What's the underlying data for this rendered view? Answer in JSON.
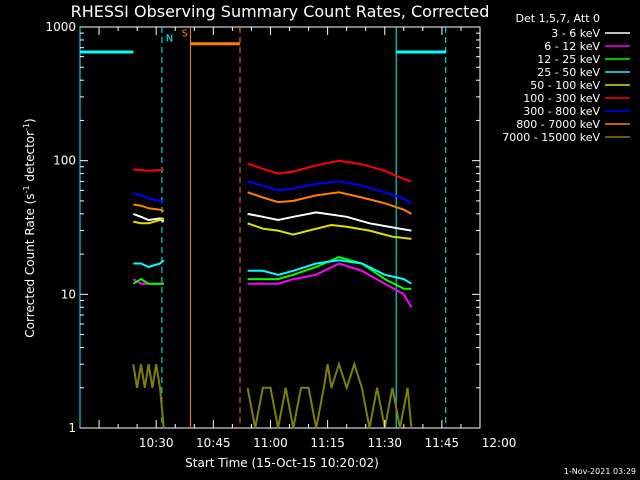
{
  "chart_data": {
    "type": "line",
    "title": "RHESSI Observing Summary Count Rates, Corrected",
    "xlabel": "Start Time (15-Oct-15 10:20:02)",
    "ylabel": "Corrected Count Rate (s⁻¹ detector⁻¹)",
    "ylabel_parts": [
      "Corrected Count Rate (s",
      "-1",
      " detector",
      "-1",
      ")"
    ],
    "yscale": "log",
    "ylim": [
      1,
      1000
    ],
    "xlim_minutes": [
      10.0,
      115.0
    ],
    "y_tick_labels": [
      "1",
      "10",
      "100",
      "1000"
    ],
    "x_tick_labels": [
      "10:30",
      "10:45",
      "11:00",
      "11:15",
      "11:30",
      "11:45",
      "12:00"
    ],
    "x_ticks_minutes": [
      30,
      45,
      60,
      75,
      90,
      105,
      120
    ],
    "legend_header": "Det 1,5,7, Att 0",
    "legend_placement": "right",
    "timestamp": "1-Nov-2021 03:29",
    "series": [
      {
        "name": "3 - 6 keV",
        "color": "#ffffff",
        "segments": [
          [
            [
              24,
              40
            ],
            [
              26,
              38
            ],
            [
              28,
              36
            ],
            [
              31,
              37
            ],
            [
              32,
              35
            ]
          ],
          [
            [
              54,
              40
            ],
            [
              58,
              38
            ],
            [
              62,
              36
            ],
            [
              66,
              38
            ],
            [
              72,
              41
            ],
            [
              80,
              38
            ],
            [
              86,
              34
            ],
            [
              94,
              31
            ],
            [
              97,
              30
            ]
          ]
        ]
      },
      {
        "name": "6 - 12 keV",
        "color": "#ff00ff",
        "segments": [
          [
            [
              24,
              13
            ],
            [
              26,
              12
            ],
            [
              28,
              12
            ],
            [
              31,
              12
            ],
            [
              32,
              12
            ]
          ],
          [
            [
              54,
              12
            ],
            [
              58,
              12
            ],
            [
              62,
              12
            ],
            [
              66,
              13
            ],
            [
              72,
              14
            ],
            [
              78,
              17
            ],
            [
              84,
              15
            ],
            [
              90,
              12
            ],
            [
              95,
              10
            ],
            [
              97,
              8
            ]
          ]
        ]
      },
      {
        "name": "12 - 25 keV",
        "color": "#00ff00",
        "segments": [
          [
            [
              24,
              12
            ],
            [
              26,
              13
            ],
            [
              28,
              12
            ],
            [
              31,
              12
            ],
            [
              32,
              12
            ]
          ],
          [
            [
              54,
              13
            ],
            [
              58,
              13
            ],
            [
              62,
              13
            ],
            [
              66,
              14
            ],
            [
              72,
              16
            ],
            [
              78,
              19
            ],
            [
              84,
              17
            ],
            [
              90,
              13
            ],
            [
              95,
              11
            ],
            [
              97,
              11
            ]
          ]
        ]
      },
      {
        "name": "25 - 50 keV",
        "color": "#00ffff",
        "segments": [
          [
            [
              24,
              17
            ],
            [
              26,
              17
            ],
            [
              28,
              16
            ],
            [
              31,
              17
            ],
            [
              32,
              18
            ]
          ],
          [
            [
              54,
              15
            ],
            [
              58,
              15
            ],
            [
              62,
              14
            ],
            [
              66,
              15
            ],
            [
              72,
              17
            ],
            [
              78,
              18
            ],
            [
              84,
              17
            ],
            [
              90,
              14
            ],
            [
              95,
              13
            ],
            [
              97,
              12
            ]
          ]
        ]
      },
      {
        "name": "50 - 100 keV",
        "color": "#e0e000",
        "segments": [
          [
            [
              24,
              35
            ],
            [
              26,
              34
            ],
            [
              28,
              34
            ],
            [
              31,
              36
            ],
            [
              32,
              37
            ]
          ],
          [
            [
              54,
              34
            ],
            [
              58,
              31
            ],
            [
              62,
              30
            ],
            [
              66,
              28
            ],
            [
              70,
              30
            ],
            [
              76,
              33
            ],
            [
              80,
              32
            ],
            [
              86,
              30
            ],
            [
              92,
              27
            ],
            [
              97,
              26
            ]
          ]
        ]
      },
      {
        "name": "100 - 300 keV",
        "color": "#ff0000",
        "segments": [
          [
            [
              24,
              86
            ],
            [
              26,
              85
            ],
            [
              28,
              84
            ],
            [
              31,
              85
            ],
            [
              32,
              86
            ]
          ],
          [
            [
              54,
              95
            ],
            [
              58,
              87
            ],
            [
              62,
              80
            ],
            [
              66,
              83
            ],
            [
              72,
              92
            ],
            [
              78,
              100
            ],
            [
              84,
              94
            ],
            [
              90,
              84
            ],
            [
              95,
              73
            ],
            [
              97,
              70
            ]
          ]
        ]
      },
      {
        "name": "300 - 800 keV",
        "color": "#0000ff",
        "segments": [
          [
            [
              24,
              57
            ],
            [
              26,
              55
            ],
            [
              28,
              52
            ],
            [
              31,
              50
            ],
            [
              32,
              49
            ]
          ],
          [
            [
              54,
              70
            ],
            [
              58,
              65
            ],
            [
              62,
              60
            ],
            [
              66,
              62
            ],
            [
              72,
              67
            ],
            [
              78,
              70
            ],
            [
              84,
              65
            ],
            [
              90,
              58
            ],
            [
              95,
              52
            ],
            [
              97,
              48
            ]
          ]
        ]
      },
      {
        "name": "800 - 7000 keV",
        "color": "#ff8000",
        "segments": [
          [
            [
              24,
              47
            ],
            [
              26,
              46
            ],
            [
              28,
              44
            ],
            [
              31,
              43
            ],
            [
              32,
              42
            ]
          ],
          [
            [
              54,
              58
            ],
            [
              58,
              53
            ],
            [
              62,
              49
            ],
            [
              66,
              50
            ],
            [
              72,
              55
            ],
            [
              78,
              58
            ],
            [
              84,
              53
            ],
            [
              90,
              48
            ],
            [
              95,
              43
            ],
            [
              97,
              40
            ]
          ]
        ]
      },
      {
        "name": "7000 - 15000 keV",
        "color": "#808000",
        "segments": [
          [
            [
              24,
              3
            ],
            [
              25,
              2
            ],
            [
              26,
              3
            ],
            [
              27,
              2
            ],
            [
              28,
              3
            ],
            [
              29,
              2
            ],
            [
              30,
              3
            ],
            [
              31,
              2
            ],
            [
              32,
              1
            ]
          ],
          [
            [
              54,
              2
            ],
            [
              56,
              1
            ],
            [
              58,
              2
            ],
            [
              60,
              2
            ],
            [
              62,
              1
            ],
            [
              64,
              2
            ],
            [
              66,
              1
            ],
            [
              68,
              2
            ],
            [
              70,
              2
            ],
            [
              72,
              1
            ],
            [
              74,
              2
            ],
            [
              75,
              3
            ],
            [
              76,
              2
            ],
            [
              78,
              3
            ],
            [
              80,
              2
            ],
            [
              82,
              3
            ],
            [
              84,
              2
            ],
            [
              86,
              1
            ],
            [
              88,
              2
            ],
            [
              90,
              1
            ],
            [
              92,
              2
            ],
            [
              94,
              1
            ],
            [
              96,
              2
            ],
            [
              97,
              1
            ]
          ]
        ]
      }
    ],
    "annotations": [
      {
        "type": "hline",
        "color": "#00ffff",
        "x": [
          10,
          24
        ],
        "y": 650
      },
      {
        "type": "hline",
        "color": "#00ffff",
        "x": [
          93,
          106
        ],
        "y": 650
      },
      {
        "type": "hline",
        "color": "#ff8000",
        "x": [
          39,
          52
        ],
        "y": 750
      },
      {
        "type": "vline",
        "color": "#00ffff",
        "style": "dashed",
        "x": 31.5
      },
      {
        "type": "vline",
        "color": "#00ffff",
        "style": "solid",
        "x": 10
      },
      {
        "type": "vline",
        "color": "#00ffff",
        "style": "solid",
        "x": 93
      },
      {
        "type": "vline",
        "color": "#00ffff",
        "style": "dashed",
        "x": 106
      },
      {
        "type": "vline",
        "color": "#ff8000",
        "style": "solid",
        "x": 39
      },
      {
        "type": "vline",
        "color": "#ff8000",
        "style": "dashed",
        "x": 52
      },
      {
        "type": "label",
        "text": "N",
        "color": "#00ffff",
        "x": 33.5,
        "y": 780
      },
      {
        "type": "label",
        "text": "S",
        "color": "#ff8000",
        "x": 37.5,
        "y": 850
      }
    ]
  }
}
